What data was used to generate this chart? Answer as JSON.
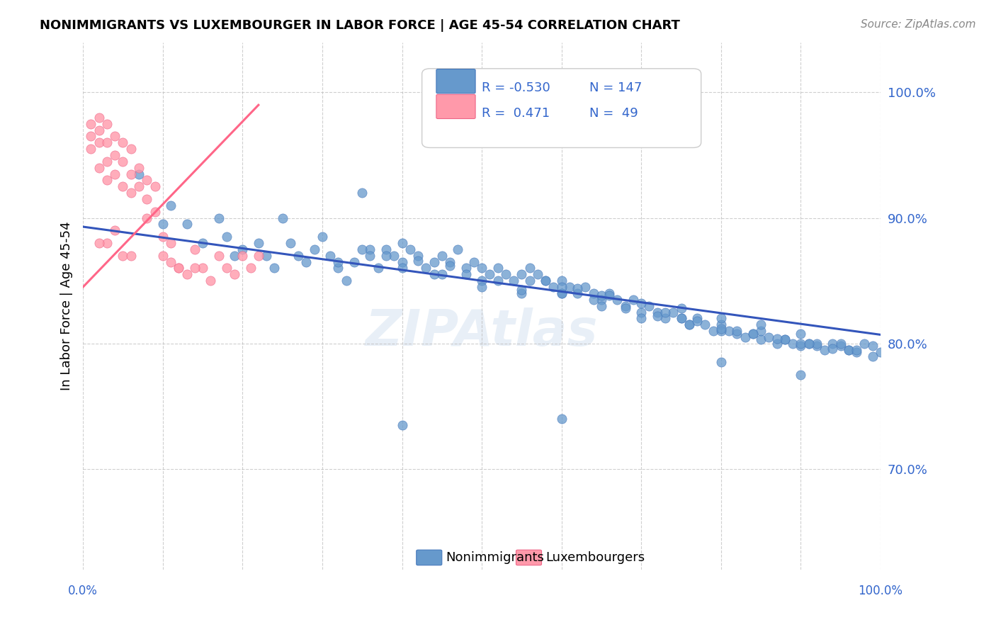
{
  "title": "NONIMMIGRANTS VS LUXEMBOURGER IN LABOR FORCE | AGE 45-54 CORRELATION CHART",
  "source": "Source: ZipAtlas.com",
  "ylabel": "In Labor Force | Age 45-54",
  "ytick_labels": [
    "70.0%",
    "80.0%",
    "90.0%",
    "100.0%"
  ],
  "ytick_values": [
    0.7,
    0.8,
    0.9,
    1.0
  ],
  "xlim": [
    0.0,
    1.0
  ],
  "ylim": [
    0.62,
    1.04
  ],
  "legend": {
    "blue_label": "Nonimmigrants",
    "pink_label": "Luxembourgers",
    "blue_R": "-0.530",
    "blue_N": "147",
    "pink_R": "0.471",
    "pink_N": "49"
  },
  "blue_color": "#6699CC",
  "pink_color": "#FF99AA",
  "blue_line_color": "#3355BB",
  "pink_line_color": "#FF6688",
  "blue_scatter": {
    "x": [
      0.07,
      0.1,
      0.11,
      0.13,
      0.15,
      0.17,
      0.18,
      0.19,
      0.2,
      0.22,
      0.23,
      0.24,
      0.25,
      0.26,
      0.27,
      0.28,
      0.29,
      0.3,
      0.31,
      0.32,
      0.33,
      0.34,
      0.35,
      0.36,
      0.37,
      0.38,
      0.39,
      0.4,
      0.41,
      0.42,
      0.43,
      0.44,
      0.45,
      0.46,
      0.47,
      0.48,
      0.49,
      0.5,
      0.51,
      0.52,
      0.53,
      0.54,
      0.55,
      0.56,
      0.57,
      0.58,
      0.59,
      0.6,
      0.61,
      0.62,
      0.63,
      0.64,
      0.65,
      0.66,
      0.67,
      0.68,
      0.69,
      0.7,
      0.71,
      0.72,
      0.73,
      0.74,
      0.75,
      0.76,
      0.77,
      0.78,
      0.79,
      0.8,
      0.81,
      0.82,
      0.83,
      0.84,
      0.85,
      0.86,
      0.87,
      0.88,
      0.89,
      0.9,
      0.91,
      0.92,
      0.93,
      0.94,
      0.95,
      0.96,
      0.97,
      0.98,
      0.99,
      1.0,
      0.35,
      0.4,
      0.45,
      0.5,
      0.55,
      0.6,
      0.65,
      0.7,
      0.75,
      0.8,
      0.85,
      0.9,
      0.32,
      0.36,
      0.4,
      0.44,
      0.48,
      0.52,
      0.56,
      0.6,
      0.64,
      0.68,
      0.72,
      0.76,
      0.8,
      0.84,
      0.88,
      0.92,
      0.96,
      0.5,
      0.55,
      0.6,
      0.65,
      0.7,
      0.75,
      0.8,
      0.85,
      0.9,
      0.95,
      0.38,
      0.42,
      0.46,
      0.58,
      0.62,
      0.66,
      0.73,
      0.77,
      0.82,
      0.87,
      0.91,
      0.94,
      0.97,
      0.99,
      0.4,
      0.6,
      0.8,
      0.9
    ],
    "y": [
      0.935,
      0.895,
      0.91,
      0.895,
      0.88,
      0.9,
      0.885,
      0.87,
      0.875,
      0.88,
      0.87,
      0.86,
      0.9,
      0.88,
      0.87,
      0.865,
      0.875,
      0.885,
      0.87,
      0.86,
      0.85,
      0.865,
      0.92,
      0.875,
      0.86,
      0.875,
      0.87,
      0.865,
      0.875,
      0.87,
      0.86,
      0.855,
      0.87,
      0.865,
      0.875,
      0.86,
      0.865,
      0.86,
      0.855,
      0.86,
      0.855,
      0.85,
      0.855,
      0.86,
      0.855,
      0.85,
      0.845,
      0.85,
      0.845,
      0.84,
      0.845,
      0.84,
      0.835,
      0.84,
      0.835,
      0.83,
      0.835,
      0.825,
      0.83,
      0.825,
      0.82,
      0.825,
      0.82,
      0.815,
      0.82,
      0.815,
      0.81,
      0.815,
      0.81,
      0.808,
      0.805,
      0.808,
      0.803,
      0.805,
      0.8,
      0.803,
      0.8,
      0.798,
      0.8,
      0.798,
      0.795,
      0.8,
      0.798,
      0.795,
      0.793,
      0.8,
      0.798,
      0.793,
      0.875,
      0.88,
      0.855,
      0.85,
      0.84,
      0.84,
      0.83,
      0.82,
      0.82,
      0.81,
      0.81,
      0.8,
      0.865,
      0.87,
      0.86,
      0.865,
      0.855,
      0.85,
      0.85,
      0.84,
      0.835,
      0.828,
      0.822,
      0.815,
      0.812,
      0.808,
      0.803,
      0.8,
      0.795,
      0.845,
      0.843,
      0.845,
      0.838,
      0.832,
      0.828,
      0.82,
      0.815,
      0.808,
      0.8,
      0.87,
      0.866,
      0.862,
      0.85,
      0.844,
      0.838,
      0.825,
      0.818,
      0.81,
      0.804,
      0.8,
      0.796,
      0.795,
      0.79,
      0.735,
      0.74,
      0.785,
      0.775
    ]
  },
  "pink_scatter": {
    "x": [
      0.01,
      0.01,
      0.01,
      0.02,
      0.02,
      0.02,
      0.02,
      0.03,
      0.03,
      0.03,
      0.03,
      0.04,
      0.04,
      0.04,
      0.05,
      0.05,
      0.05,
      0.06,
      0.06,
      0.06,
      0.07,
      0.07,
      0.08,
      0.08,
      0.09,
      0.09,
      0.1,
      0.1,
      0.11,
      0.11,
      0.12,
      0.13,
      0.14,
      0.15,
      0.16,
      0.17,
      0.18,
      0.19,
      0.2,
      0.21,
      0.22,
      0.14,
      0.05,
      0.03,
      0.08,
      0.12,
      0.02,
      0.04,
      0.06
    ],
    "y": [
      0.975,
      0.965,
      0.955,
      0.98,
      0.97,
      0.96,
      0.94,
      0.975,
      0.96,
      0.945,
      0.93,
      0.965,
      0.95,
      0.935,
      0.96,
      0.945,
      0.925,
      0.955,
      0.935,
      0.92,
      0.94,
      0.925,
      0.93,
      0.915,
      0.925,
      0.905,
      0.885,
      0.87,
      0.88,
      0.865,
      0.86,
      0.855,
      0.875,
      0.86,
      0.85,
      0.87,
      0.86,
      0.855,
      0.87,
      0.86,
      0.87,
      0.86,
      0.87,
      0.88,
      0.9,
      0.86,
      0.88,
      0.89,
      0.87
    ]
  },
  "blue_trendline": {
    "x_start": 0.0,
    "y_start": 0.893,
    "x_end": 1.0,
    "y_end": 0.807
  },
  "pink_trendline": {
    "x_start": 0.0,
    "y_start": 0.845,
    "x_end": 0.22,
    "y_end": 0.99
  }
}
